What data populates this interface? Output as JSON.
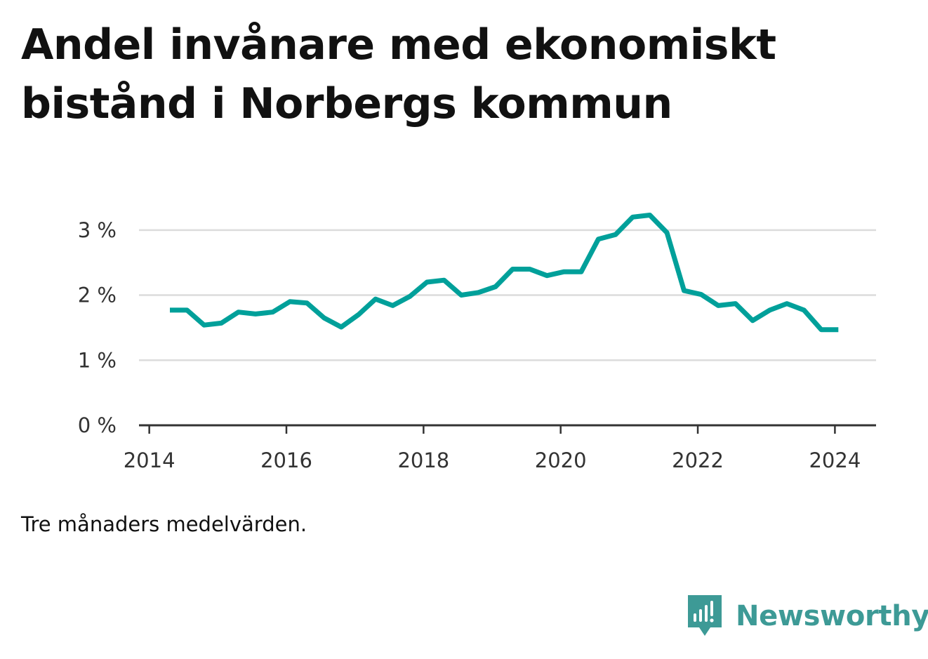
{
  "title": "Andel invånare med ekonomiskt bistånd i Norbergs kommun",
  "note": "Tre månaders medelvärden.",
  "brand": {
    "name": "Newsworthy",
    "icon": "newsworthy-logo-icon",
    "color": "#3d9a96"
  },
  "chart_data": {
    "type": "line",
    "title": "Andel invånare med ekonomiskt bistånd i Norbergs kommun",
    "xlabel": "",
    "ylabel": "",
    "xlim": [
      2013.85,
      2024.6
    ],
    "ylim": [
      0,
      3.3
    ],
    "x_ticks": [
      2014,
      2016,
      2018,
      2020,
      2022,
      2024
    ],
    "y_ticks": [
      0,
      1,
      2,
      3
    ],
    "y_tick_labels": [
      "0 %",
      "1 %",
      "2 %",
      "3 %"
    ],
    "grid": "horizontal",
    "line_color": "#00a09a",
    "series": [
      {
        "x": [
          2014.3,
          2014.55,
          2014.8,
          2015.05,
          2015.3,
          2015.55,
          2015.8,
          2016.05,
          2016.3,
          2016.55,
          2016.8,
          2017.05,
          2017.3,
          2017.55,
          2017.8,
          2018.05,
          2018.3,
          2018.55,
          2018.8,
          2019.05,
          2019.3,
          2019.55,
          2019.8,
          2020.05,
          2020.3,
          2020.55,
          2020.8,
          2021.05,
          2021.3,
          2021.55,
          2021.8,
          2022.05,
          2022.3,
          2022.55,
          2022.8,
          2023.05,
          2023.3,
          2023.55,
          2023.8,
          2024.05
        ],
        "y": [
          1.77,
          1.77,
          1.54,
          1.57,
          1.74,
          1.71,
          1.74,
          1.9,
          1.88,
          1.65,
          1.51,
          1.7,
          1.94,
          1.84,
          1.98,
          2.2,
          2.23,
          2.0,
          2.04,
          2.13,
          2.4,
          2.4,
          2.3,
          2.36,
          2.36,
          2.86,
          2.93,
          3.2,
          3.23,
          2.96,
          2.07,
          2.01,
          1.84,
          1.87,
          1.61,
          1.77,
          1.87,
          1.77,
          1.47,
          1.47
        ]
      }
    ]
  }
}
